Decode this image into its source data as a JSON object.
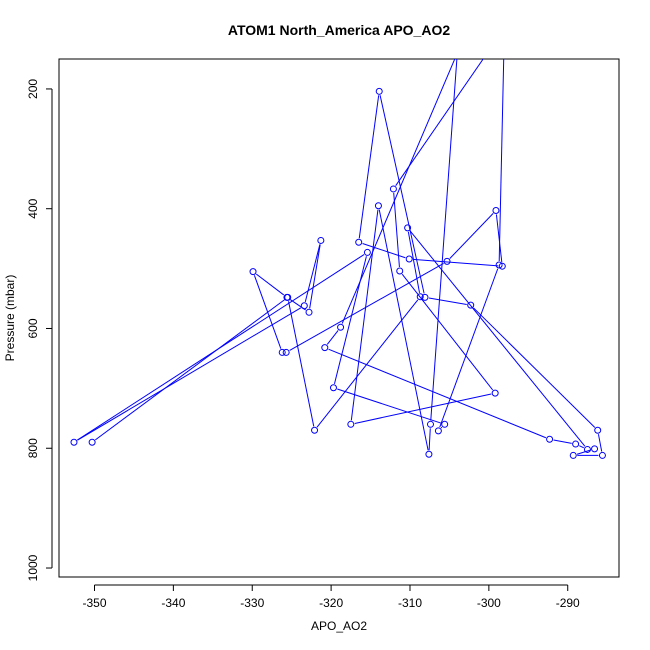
{
  "chart_data": {
    "type": "line",
    "title": "ATOM1 North_America APO_AO2",
    "xlabel": "APO_AO2",
    "ylabel": "Pressure (mbar)",
    "xlim": [
      -354.5,
      -283.5
    ],
    "ylim": [
      1015,
      150
    ],
    "y_reversed": true,
    "x_ticks": [
      -350,
      -340,
      -330,
      -320,
      -310,
      -300,
      -290
    ],
    "y_ticks": [
      200,
      400,
      600,
      800,
      1000
    ],
    "grid": false,
    "legend": "none",
    "color": "#0000ff",
    "series": [
      {
        "points": [
          [
            -286.6,
            801
          ],
          [
            -289.3,
            812
          ],
          [
            -285.6,
            812
          ],
          [
            -286.2,
            770
          ],
          [
            -302.3,
            561
          ],
          [
            -308.1,
            548
          ],
          [
            -313.9,
            204
          ],
          [
            -316.5,
            456
          ],
          [
            -310.1,
            484
          ],
          [
            -298.3,
            496
          ],
          [
            -299.1,
            403
          ],
          [
            -305.3,
            488
          ],
          [
            -325.7,
            640
          ],
          [
            -326.2,
            640
          ],
          [
            -329.9,
            505
          ],
          [
            -325.6,
            548
          ],
          [
            -322.8,
            573
          ],
          [
            -321.3,
            453
          ],
          [
            -323.4,
            562
          ],
          [
            -352.6,
            790
          ],
          [
            -315.4,
            473
          ],
          [
            -319.7,
            699
          ],
          [
            -305.6,
            760
          ],
          [
            -306.4,
            771
          ],
          [
            -298.7,
            494
          ],
          [
            -298.1,
            140
          ],
          [
            -300.2,
            140
          ],
          [
            -312.1,
            367
          ],
          [
            -311.3,
            504
          ],
          [
            -299.2,
            708
          ],
          [
            -317.5,
            760
          ],
          [
            -314.0,
            395
          ],
          [
            -307.6,
            810
          ],
          [
            -307.4,
            760
          ],
          [
            -304.0,
            140
          ],
          [
            -318.8,
            598
          ],
          [
            -320.8,
            632
          ],
          [
            -292.3,
            785
          ],
          [
            -289.0,
            793
          ],
          [
            -287.5,
            802
          ],
          [
            -310.3,
            432
          ],
          [
            -308.7,
            547
          ],
          [
            -322.1,
            770
          ],
          [
            -325.5,
            548
          ],
          [
            -350.3,
            790
          ]
        ]
      }
    ]
  }
}
